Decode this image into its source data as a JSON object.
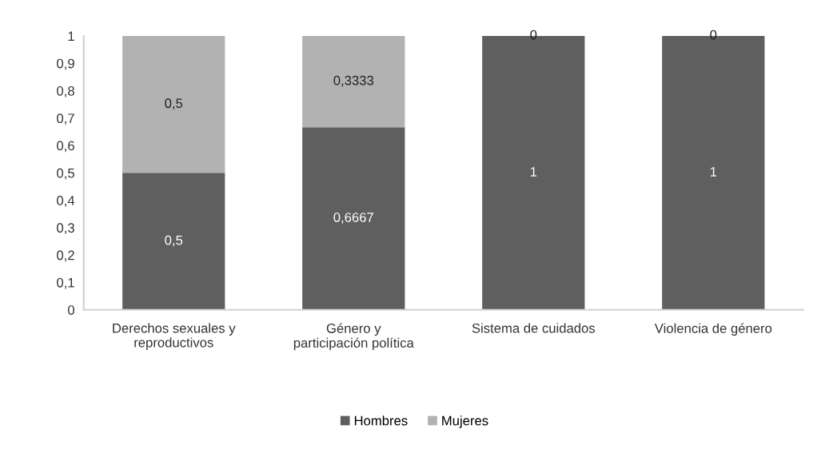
{
  "chart_data": {
    "type": "bar",
    "stacked": true,
    "categories": [
      "Derechos sexuales y\nreproductivos",
      "Género y\nparticipación política",
      "Sistema de cuidados",
      "Violencia de género"
    ],
    "series": [
      {
        "name": "Hombres",
        "color": "#5f5f5f",
        "values": [
          0.5,
          0.6667,
          1,
          1
        ],
        "value_labels": [
          "0,5",
          "0,6667",
          "1",
          "1"
        ]
      },
      {
        "name": "Mujeres",
        "color": "#b2b2b2",
        "values": [
          0.5,
          0.3333,
          0,
          0
        ],
        "value_labels": [
          "0,5",
          "0,3333",
          "0",
          "0"
        ]
      }
    ],
    "ylim": [
      0,
      1
    ],
    "yticks": [
      0,
      {
        "value": 0.1,
        "label": "0,1"
      },
      {
        "value": 0.2,
        "label": "0,2"
      },
      {
        "value": 0.3,
        "label": "0,3"
      },
      {
        "value": 0.4,
        "label": "0,4"
      },
      {
        "value": 0.5,
        "label": "0,5"
      },
      {
        "value": 0.6,
        "label": "0,6"
      },
      {
        "value": 0.7,
        "label": "0,7"
      },
      {
        "value": 0.8,
        "label": "0,8"
      },
      {
        "value": 0.9,
        "label": "0,9"
      },
      1
    ],
    "grid": false,
    "legend": "bottom"
  }
}
